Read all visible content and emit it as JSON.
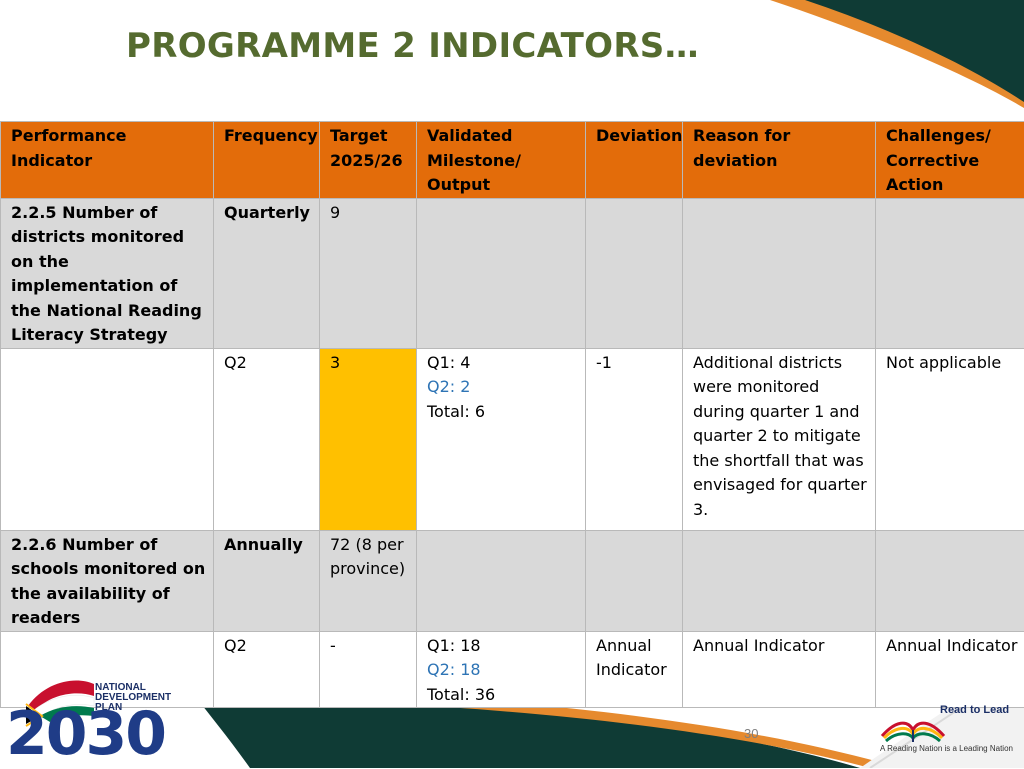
{
  "title": "PROGRAMME 2 INDICATORS…",
  "table": {
    "headers": [
      "Performance Indicator",
      "Frequency",
      "Target 2025/26",
      "Validated Milestone/ Output",
      "Deviation",
      "Reason for deviation",
      "Challenges/ Corrective Action"
    ],
    "rows": [
      {
        "indicator": "2.2.5 Number of districts monitored on the implementation of the National Reading Literacy Strategy",
        "frequency": "Quarterly",
        "target": "9"
      },
      {
        "indicator": "",
        "frequency": "Q2",
        "target": "3",
        "milestone": {
          "q1": "Q1: 4",
          "q2": "Q2: 2",
          "total": "Total: 6"
        },
        "deviation": "-1",
        "reason": "Additional districts were monitored during quarter 1 and quarter 2 to mitigate the shortfall that was envisaged for quarter 3.",
        "challenges": "Not applicable"
      },
      {
        "indicator": "2.2.6 Number of schools monitored on the availability of readers",
        "frequency": "Annually",
        "target": "72 (8 per province)"
      },
      {
        "indicator": "",
        "frequency": "Q2",
        "target": "-",
        "milestone": {
          "q1": "Q1: 18",
          "q2": "Q2: 18",
          "total": "Total: 36"
        },
        "deviation": "Annual Indicator",
        "reason": "Annual Indicator",
        "challenges": "Annual Indicator"
      }
    ]
  },
  "colors": {
    "title": "#556b2f",
    "header_bg": "#e36c0a",
    "highlight": "#ffc000",
    "grey_row": "#d9d9d9",
    "dark_teal": "#0f3b35",
    "orange_swoosh": "#e68a2e",
    "blue_q2": "#2e74b5"
  },
  "footer": {
    "page_number": "30",
    "ndp_logo": {
      "text_line1": "NATIONAL",
      "text_line2": "DEVELOPMENT",
      "text_line3": "PLAN",
      "year": "2030"
    },
    "read_to_lead": {
      "title": "Read to Lead",
      "tagline": "A Reading Nation is a Leading Nation"
    }
  }
}
